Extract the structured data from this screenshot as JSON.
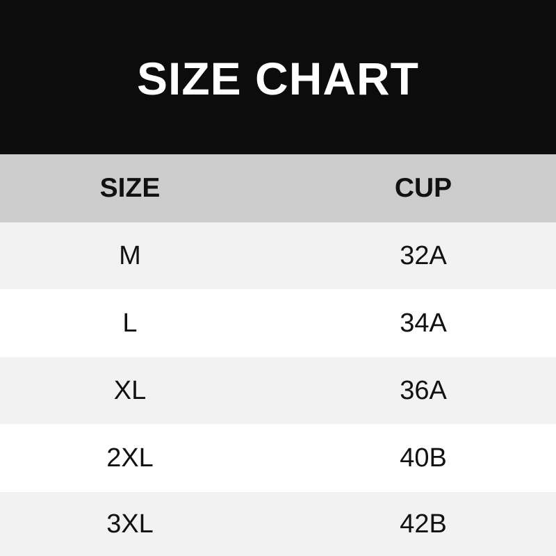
{
  "title": "SIZE CHART",
  "table": {
    "headers": [
      "SIZE",
      "CUP"
    ],
    "rows": [
      [
        "M",
        "32A"
      ],
      [
        "L",
        "34A"
      ],
      [
        "XL",
        "36A"
      ],
      [
        "2XL",
        "40B"
      ],
      [
        "3XL",
        "42B"
      ]
    ]
  },
  "colors": {
    "header_bg": "#0c0c0c",
    "column_header_bg": "#cccccc",
    "stripe_bg": "#f2f2f2",
    "row_bg": "#ffffff"
  }
}
